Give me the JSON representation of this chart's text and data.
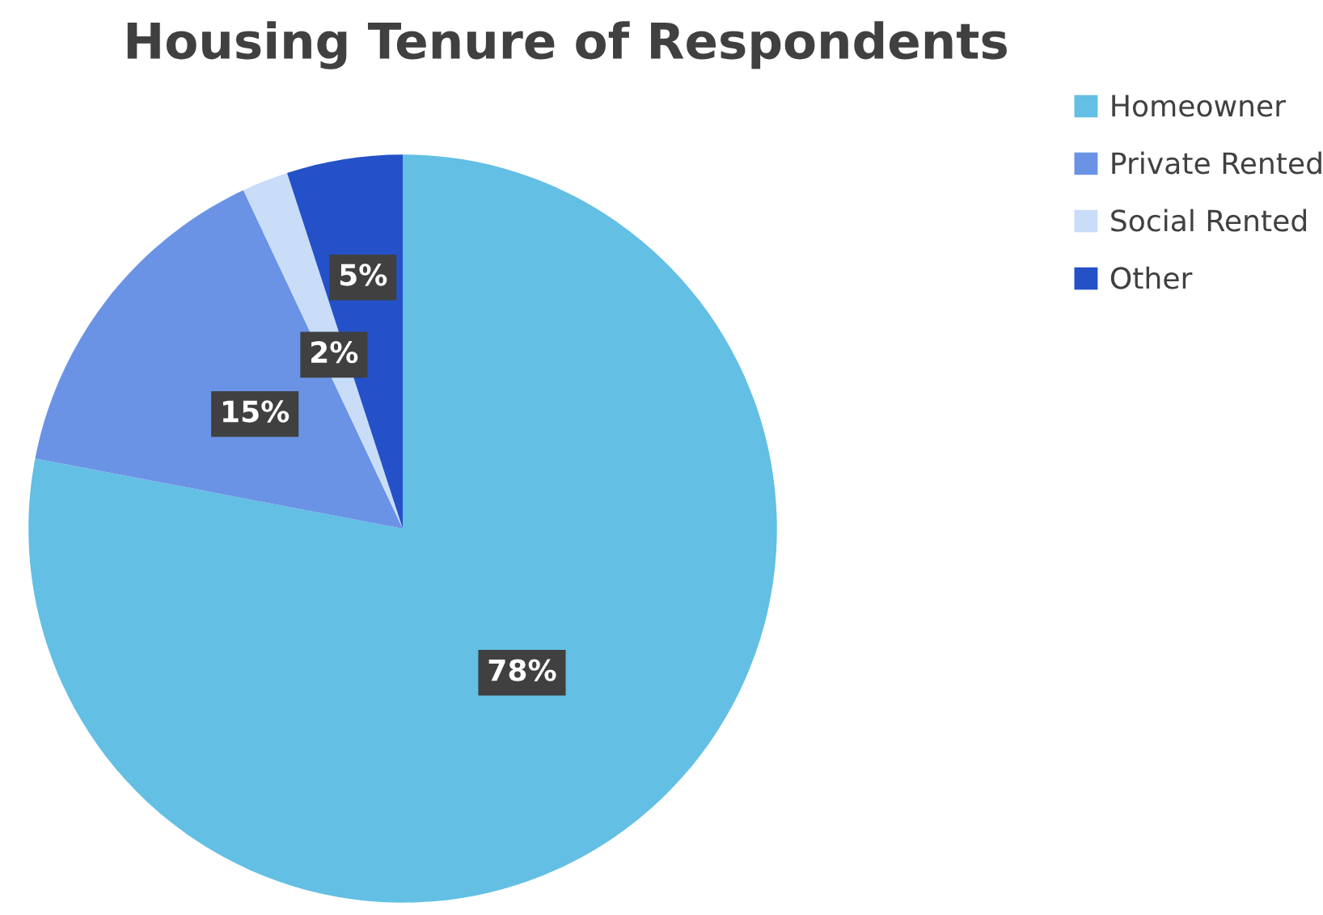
{
  "chart_data": {
    "type": "pie",
    "title": "Housing Tenure of Respondents",
    "categories": [
      "Homeowner",
      "Private Rented",
      "Social Rented",
      "Other"
    ],
    "values": [
      78,
      15,
      2,
      5
    ],
    "colors": [
      "#63bfe4",
      "#6a93e6",
      "#c9ddf8",
      "#2451c8"
    ],
    "value_labels": [
      "78%",
      "15%",
      "2%",
      "5%"
    ],
    "legend": "top right"
  }
}
